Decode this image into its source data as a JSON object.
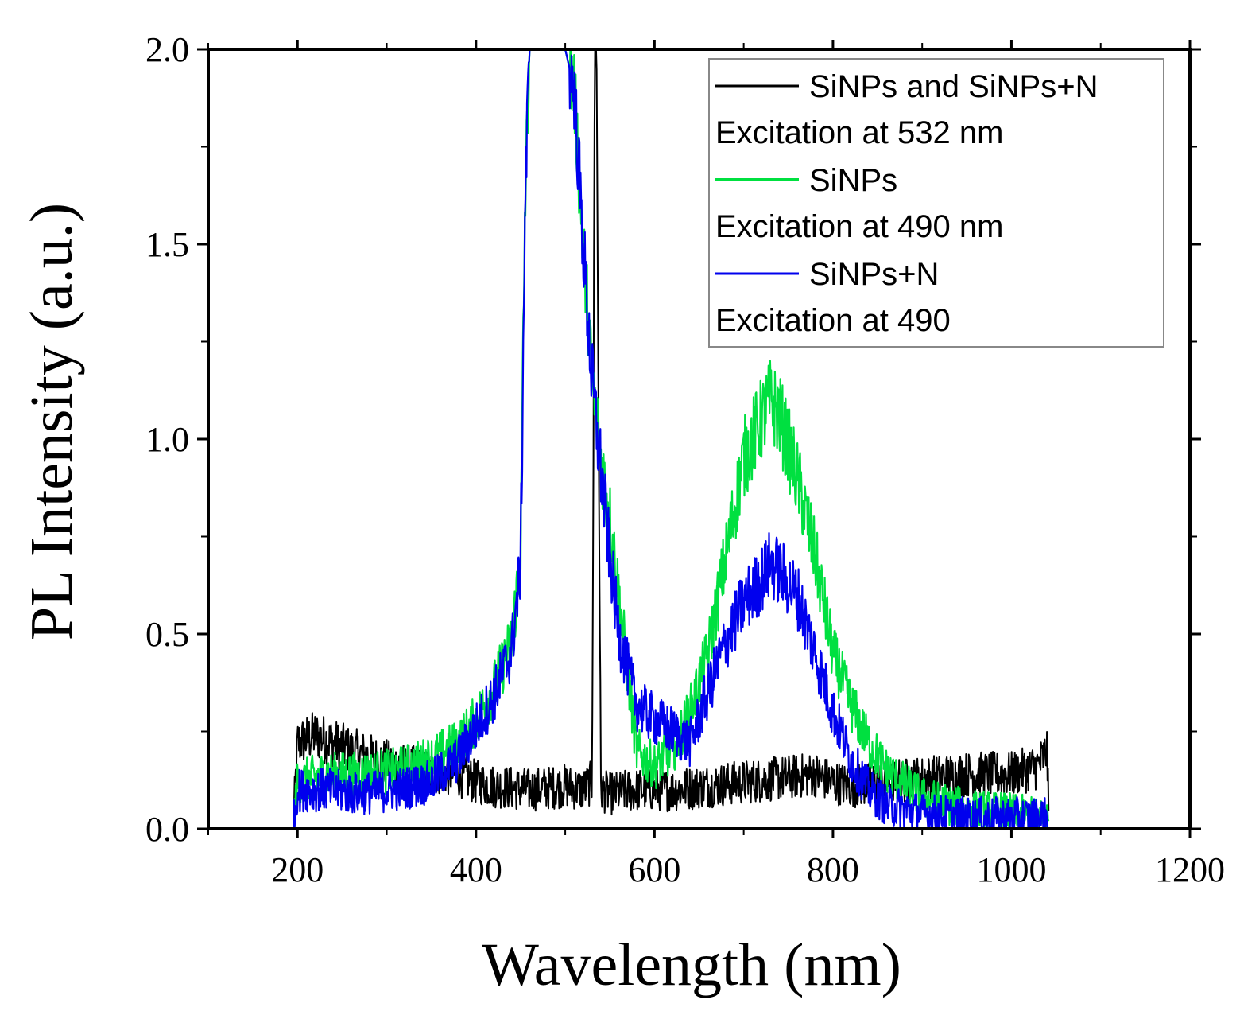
{
  "chart_data": {
    "type": "line",
    "title": "",
    "xlabel": "Wavelength (nm)",
    "ylabel": "PL Intensity (a.u.)",
    "xlim": [
      100,
      1200
    ],
    "ylim": [
      0.0,
      2.0
    ],
    "x_ticks": [
      200,
      400,
      600,
      800,
      1000,
      1200
    ],
    "x_tick_labels": [
      "200",
      "400",
      "600",
      "800",
      "1000",
      "1200"
    ],
    "y_ticks": [
      0.0,
      0.5,
      1.0,
      1.5,
      2.0
    ],
    "y_tick_labels": [
      "0.0",
      "0.5",
      "1.0",
      "1.5",
      "2.0"
    ],
    "grid": false,
    "legend_position": "top-right",
    "legend": [
      {
        "label": "SiNPs and SiNPs+N",
        "subtitle": "Excitation at 532 nm",
        "color": "#000000"
      },
      {
        "label": "SiNPs",
        "subtitle": "Excitation at 490 nm",
        "color": "#00e040"
      },
      {
        "label": "SiNPs+N",
        "subtitle": "Excitation at 490",
        "color": "#0000ee"
      }
    ],
    "series": [
      {
        "name": "SiNPs and SiNPs+N",
        "color": "#000000",
        "x": [
          195,
          200,
          220,
          260,
          300,
          340,
          380,
          400,
          420,
          460,
          500,
          520,
          530,
          532,
          533,
          535,
          537,
          540,
          550,
          580,
          620,
          660,
          700,
          740,
          780,
          800,
          820,
          860,
          900,
          950,
          1000,
          1030,
          1040,
          1042
        ],
        "y": [
          0.0,
          0.22,
          0.24,
          0.2,
          0.17,
          0.15,
          0.14,
          0.12,
          0.11,
          0.1,
          0.11,
          0.1,
          0.12,
          1.2,
          2.0,
          2.0,
          1.2,
          0.1,
          0.09,
          0.1,
          0.1,
          0.11,
          0.12,
          0.13,
          0.14,
          0.12,
          0.11,
          0.12,
          0.13,
          0.14,
          0.14,
          0.16,
          0.2,
          0.0
        ]
      },
      {
        "name": "SiNPs",
        "color": "#00e040",
        "x": [
          195,
          200,
          230,
          270,
          310,
          350,
          380,
          400,
          420,
          440,
          450,
          455,
          460,
          470,
          480,
          490,
          500,
          510,
          520,
          530,
          540,
          550,
          560,
          570,
          580,
          600,
          620,
          640,
          660,
          680,
          700,
          720,
          730,
          740,
          760,
          780,
          800,
          820,
          840,
          860,
          900,
          950,
          1000,
          1030,
          1040,
          1042
        ],
        "y": [
          0.0,
          0.12,
          0.14,
          0.14,
          0.15,
          0.18,
          0.22,
          0.28,
          0.36,
          0.48,
          0.7,
          1.6,
          2.0,
          2.0,
          2.0,
          2.0,
          2.0,
          1.9,
          1.5,
          1.15,
          0.95,
          0.8,
          0.6,
          0.4,
          0.2,
          0.16,
          0.2,
          0.3,
          0.45,
          0.7,
          0.95,
          1.05,
          1.1,
          1.06,
          0.9,
          0.7,
          0.45,
          0.32,
          0.22,
          0.15,
          0.08,
          0.05,
          0.04,
          0.03,
          0.03,
          0.0
        ]
      },
      {
        "name": "SiNPs+N",
        "color": "#0000ee",
        "x": [
          195,
          200,
          230,
          270,
          310,
          350,
          380,
          400,
          420,
          440,
          450,
          455,
          460,
          470,
          480,
          490,
          500,
          510,
          520,
          530,
          540,
          550,
          560,
          580,
          600,
          620,
          640,
          660,
          680,
          700,
          720,
          730,
          740,
          760,
          780,
          800,
          820,
          840,
          860,
          900,
          950,
          1000,
          1030,
          1040,
          1042
        ],
        "y": [
          0.0,
          0.1,
          0.1,
          0.09,
          0.1,
          0.12,
          0.18,
          0.26,
          0.34,
          0.46,
          0.68,
          1.6,
          2.0,
          2.0,
          2.0,
          2.0,
          2.0,
          1.9,
          1.5,
          1.15,
          0.92,
          0.7,
          0.5,
          0.32,
          0.28,
          0.25,
          0.22,
          0.35,
          0.48,
          0.58,
          0.64,
          0.68,
          0.66,
          0.6,
          0.45,
          0.3,
          0.18,
          0.1,
          0.06,
          0.04,
          0.03,
          0.03,
          0.03,
          0.03,
          0.0
        ]
      }
    ]
  }
}
